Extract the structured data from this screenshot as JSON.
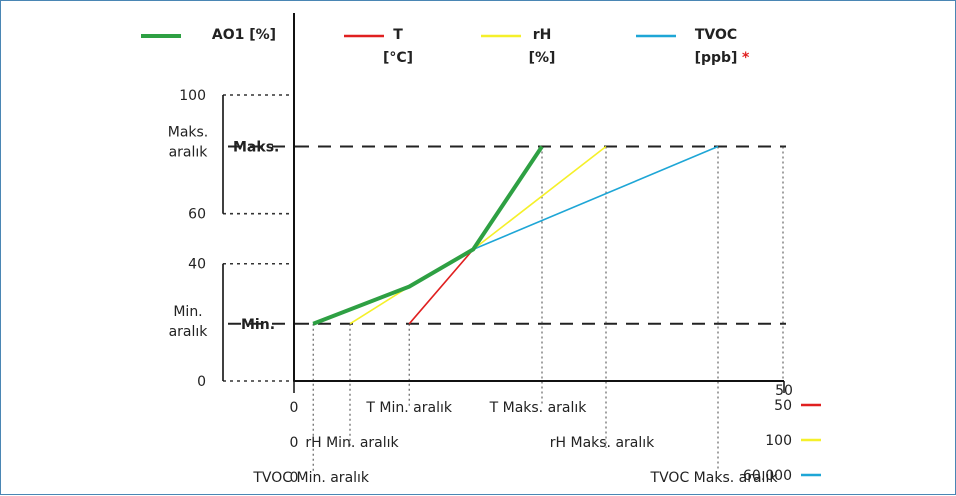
{
  "chart_data": {
    "type": "line",
    "legend": [
      {
        "name": "AO1 [%]",
        "line1": "AO1 [%]",
        "line2": "",
        "color": "#2ea043"
      },
      {
        "name": "T [°C]",
        "line1": "T",
        "line2": "[°C]",
        "color": "#e02020"
      },
      {
        "name": "rH [%]",
        "line1": "rH",
        "line2": "[%]",
        "color": "#f5f02a"
      },
      {
        "name": "TVOC [ppb]",
        "line1": "TVOC",
        "line2": "[ppb]",
        "color": "#1ea6d6"
      }
    ],
    "legend_asterisk": "*",
    "y_ticks": [
      "100",
      "60",
      "40",
      "0"
    ],
    "y_range_labels": {
      "max_top": "Maks.",
      "max_bottom": "aralık",
      "min_top": "Min.",
      "min_bottom": "aralık"
    },
    "level_labels": {
      "max": "Maks.",
      "min": "Min."
    },
    "x_axis_start": "0",
    "x_axis_end": "50",
    "x_rows": [
      {
        "zero": "0",
        "min_label": "T Min. aralık",
        "max_label": "T Maks. aralık",
        "end_value": "50",
        "color": "#e02020"
      },
      {
        "zero": "0",
        "min_label": "rH Min. aralık",
        "max_label": "rH Maks. aralık",
        "end_value": "100",
        "color": "#f5f02a"
      },
      {
        "zero": "0",
        "min_label": "TVOC Min. aralık",
        "max_label": "TVOC Maks. aralık",
        "end_value": "60.000",
        "color": "#1ea6d6"
      }
    ],
    "series": [
      {
        "name": "AO1 [%]",
        "points": [
          [
            1.2,
            20
          ],
          [
            7.2,
            33
          ],
          [
            11.2,
            46
          ],
          [
            15.5,
            82
          ]
        ]
      },
      {
        "name": "T [°C]",
        "points": [
          [
            7.2,
            20
          ],
          [
            11.2,
            46
          ],
          [
            15.5,
            82
          ]
        ]
      },
      {
        "name": "rH [%]",
        "points": [
          [
            3.5,
            20
          ],
          [
            7.2,
            33
          ],
          [
            11.2,
            46
          ],
          [
            19.5,
            82
          ]
        ]
      },
      {
        "name": "TVOC [ppb]",
        "points": [
          [
            1.2,
            20
          ],
          [
            7.2,
            33
          ],
          [
            11.2,
            46
          ],
          [
            26.5,
            82
          ]
        ]
      }
    ],
    "levels": {
      "max": 82,
      "min": 20
    },
    "xlim": [
      0,
      31.5
    ],
    "ylim": [
      0,
      100
    ],
    "grid": false
  }
}
